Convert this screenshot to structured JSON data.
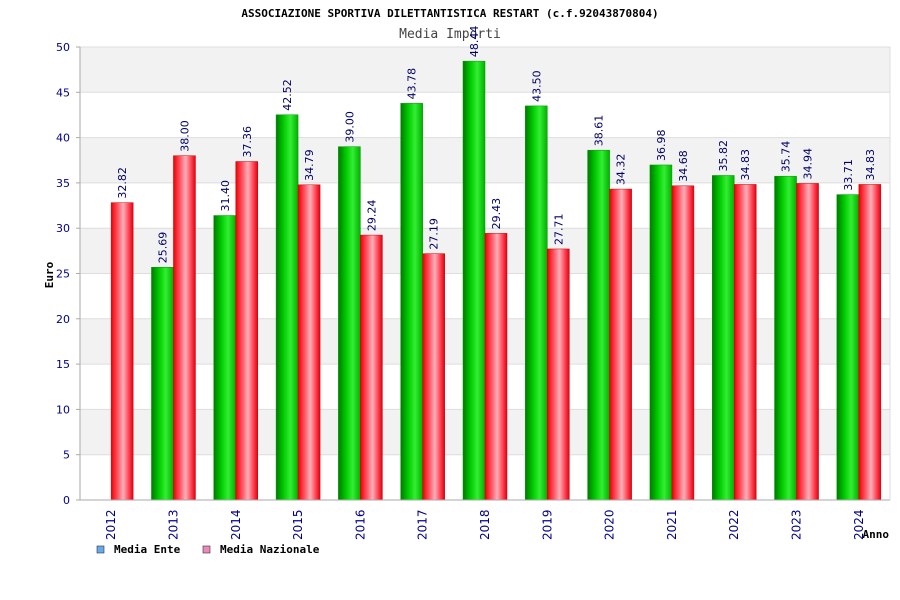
{
  "chart_data": {
    "type": "bar",
    "title": "ASSOCIAZIONE SPORTIVA DILETTANTISTICA RESTART (c.f.92043870804)",
    "subtitle": "Media Importi",
    "xlabel": "Anno",
    "ylabel": "Euro",
    "ylim": [
      0,
      50
    ],
    "yticks": [
      "0",
      "5",
      "10",
      "15",
      "20",
      "25",
      "30",
      "35",
      "40",
      "45",
      "50"
    ],
    "categories": [
      "2012",
      "2013",
      "2014",
      "2015",
      "2016",
      "2017",
      "2018",
      "2019",
      "2020",
      "2021",
      "2022",
      "2023",
      "2024"
    ],
    "series": [
      {
        "name": "Media Ente",
        "values": [
          null,
          25.69,
          31.4,
          42.52,
          39.0,
          43.78,
          48.44,
          43.5,
          38.61,
          36.98,
          35.82,
          35.74,
          33.71
        ],
        "labels": [
          "",
          "25.69",
          "31.40",
          "42.52",
          "39.00",
          "43.78",
          "48.44",
          "43.50",
          "38.61",
          "36.98",
          "35.82",
          "35.74",
          "33.71"
        ]
      },
      {
        "name": "Media Nazionale",
        "values": [
          32.82,
          38.0,
          37.36,
          34.79,
          29.24,
          27.19,
          29.43,
          27.71,
          34.32,
          34.68,
          34.83,
          34.94,
          34.83
        ],
        "labels": [
          "32.82",
          "38.00",
          "37.36",
          "34.79",
          "29.24",
          "27.19",
          "29.43",
          "27.71",
          "34.32",
          "34.68",
          "34.83",
          "34.94",
          "34.83"
        ]
      }
    ],
    "grid": true,
    "legend_position": "bottom-left",
    "colors": {
      "ente_bar": "#00cc00",
      "nazionale_bar": "#ff1a2a",
      "ente_legend": "#66aaee",
      "nazionale_legend": "#ee88bb",
      "axis_text": "#00008b"
    }
  }
}
